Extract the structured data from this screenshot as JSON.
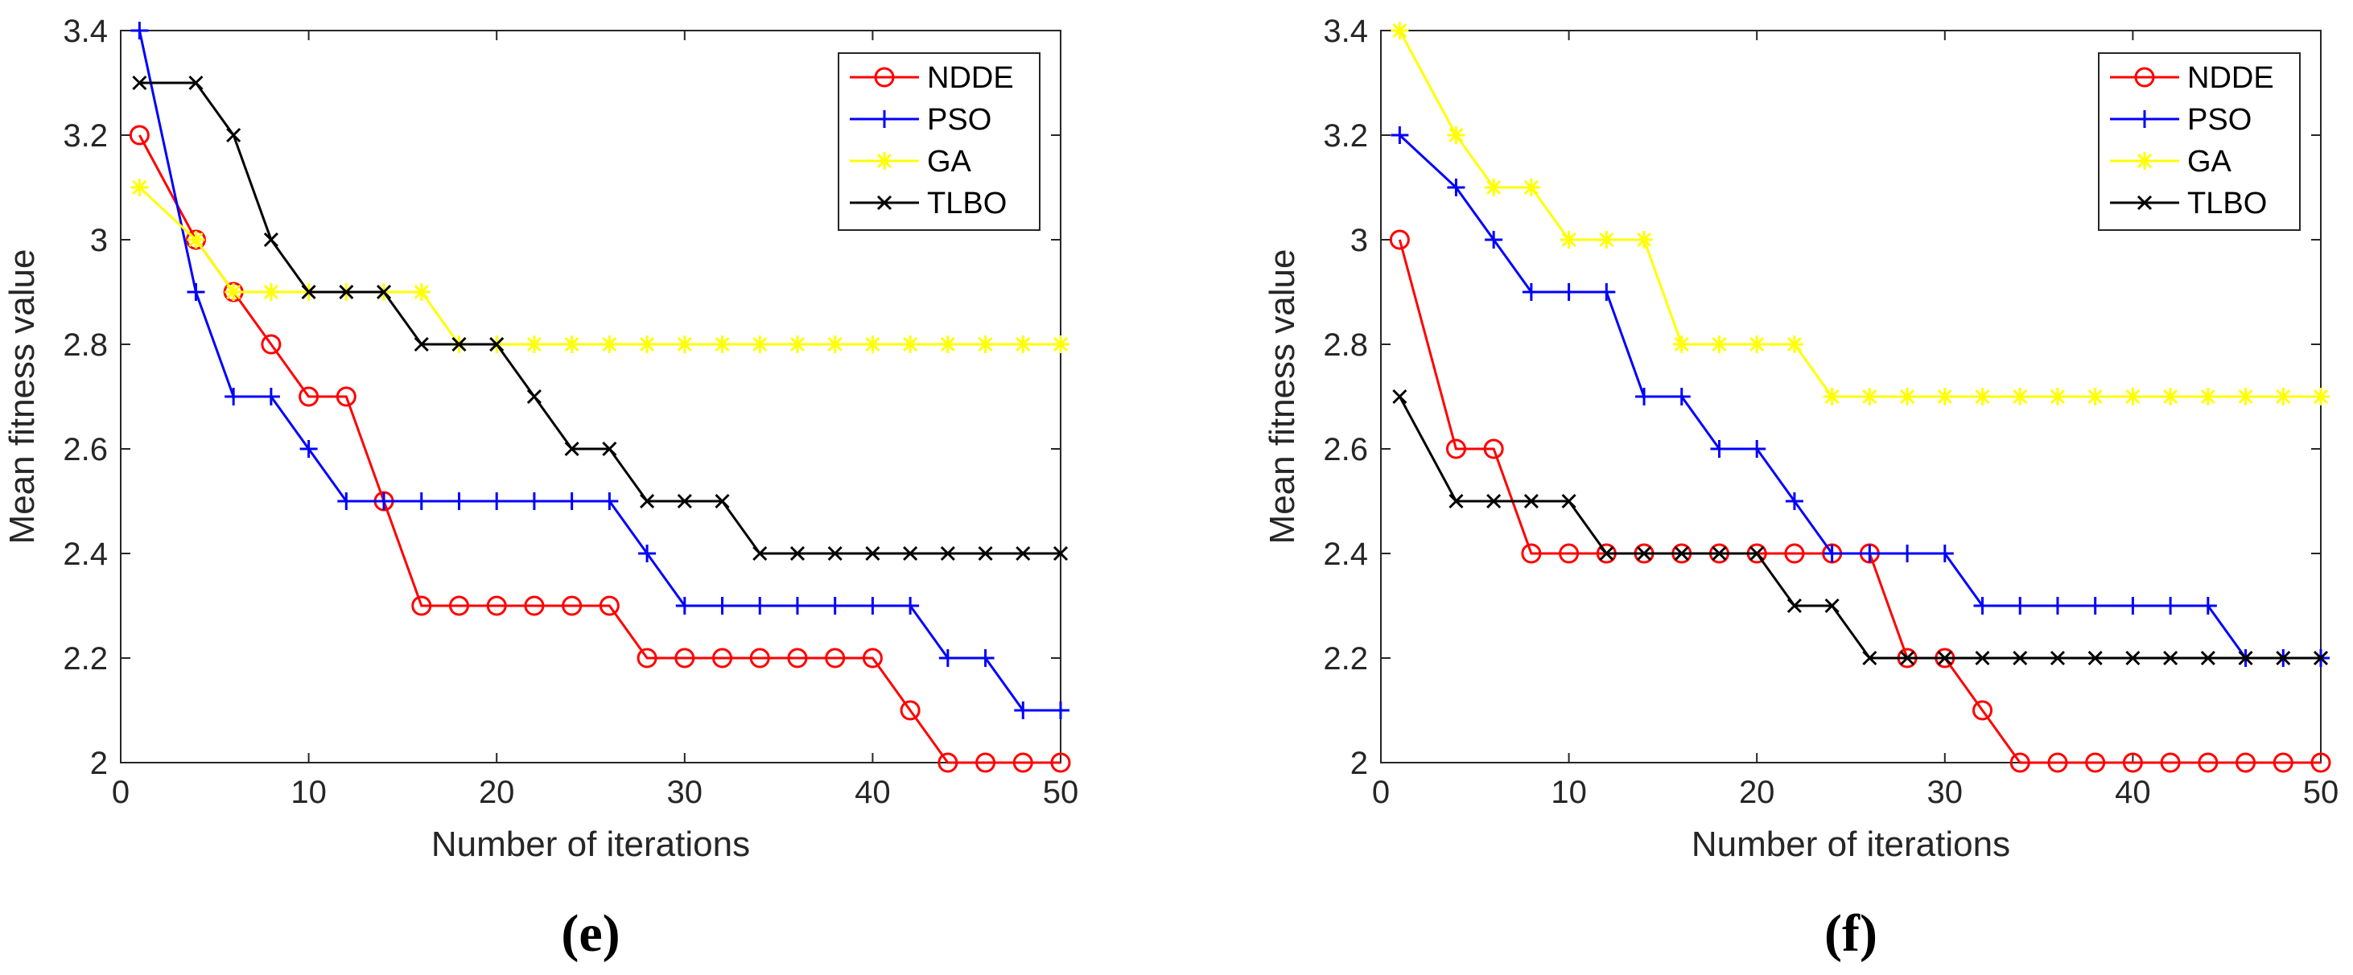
{
  "chart_data": [
    {
      "type": "line",
      "panel_label": "(e)",
      "xlabel": "Number of iterations",
      "ylabel": "Mean fitness value",
      "xlim": [
        0,
        50
      ],
      "ylim": [
        2,
        3.4
      ],
      "xticks": [
        0,
        10,
        20,
        30,
        40,
        50
      ],
      "yticks": [
        2,
        2.2,
        2.4,
        2.6,
        2.8,
        3,
        3.2,
        3.4
      ],
      "ytick_labels": [
        "2",
        "2.2",
        "2.4",
        "2.6",
        "2.8",
        "3",
        "3.2",
        "3.4"
      ],
      "grid": false,
      "legend_position": "top-right",
      "x": [
        1,
        4,
        6,
        8,
        10,
        12,
        14,
        16,
        18,
        20,
        22,
        24,
        26,
        28,
        30,
        32,
        34,
        36,
        38,
        40,
        42,
        44,
        46,
        48,
        50
      ],
      "series": [
        {
          "name": "NDDE",
          "color": "#ff0000",
          "marker": "circle",
          "values": [
            3.2,
            3.0,
            2.9,
            2.8,
            2.7,
            2.7,
            2.5,
            2.3,
            2.3,
            2.3,
            2.3,
            2.3,
            2.3,
            2.2,
            2.2,
            2.2,
            2.2,
            2.2,
            2.2,
            2.2,
            2.1,
            2.0,
            2.0,
            2.0,
            2.0
          ]
        },
        {
          "name": "PSO",
          "color": "#0000ff",
          "marker": "plus",
          "values": [
            3.4,
            2.9,
            2.7,
            2.7,
            2.6,
            2.5,
            2.5,
            2.5,
            2.5,
            2.5,
            2.5,
            2.5,
            2.5,
            2.4,
            2.3,
            2.3,
            2.3,
            2.3,
            2.3,
            2.3,
            2.3,
            2.2,
            2.2,
            2.1,
            2.1
          ]
        },
        {
          "name": "GA",
          "color": "#ffff00",
          "marker": "asterisk",
          "values": [
            3.1,
            3.0,
            2.9,
            2.9,
            2.9,
            2.9,
            2.9,
            2.9,
            2.8,
            2.8,
            2.8,
            2.8,
            2.8,
            2.8,
            2.8,
            2.8,
            2.8,
            2.8,
            2.8,
            2.8,
            2.8,
            2.8,
            2.8,
            2.8,
            2.8
          ]
        },
        {
          "name": "TLBO",
          "color": "#000000",
          "marker": "x",
          "values": [
            3.3,
            3.3,
            3.2,
            3.0,
            2.9,
            2.9,
            2.9,
            2.8,
            2.8,
            2.8,
            2.7,
            2.6,
            2.6,
            2.5,
            2.5,
            2.5,
            2.4,
            2.4,
            2.4,
            2.4,
            2.4,
            2.4,
            2.4,
            2.4,
            2.4
          ]
        }
      ]
    },
    {
      "type": "line",
      "panel_label": "(f)",
      "xlabel": "Number of iterations",
      "ylabel": "Mean fitness value",
      "xlim": [
        0,
        50
      ],
      "ylim": [
        2,
        3.4
      ],
      "xticks": [
        0,
        10,
        20,
        30,
        40,
        50
      ],
      "yticks": [
        2,
        2.2,
        2.4,
        2.6,
        2.8,
        3,
        3.2,
        3.4
      ],
      "ytick_labels": [
        "2",
        "2.2",
        "2.4",
        "2.6",
        "2.8",
        "3",
        "3.2",
        "3.4"
      ],
      "grid": false,
      "legend_position": "top-right",
      "x": [
        1,
        4,
        6,
        8,
        10,
        12,
        14,
        16,
        18,
        20,
        22,
        24,
        26,
        28,
        30,
        32,
        34,
        36,
        38,
        40,
        42,
        44,
        46,
        48,
        50
      ],
      "series": [
        {
          "name": "NDDE",
          "color": "#ff0000",
          "marker": "circle",
          "values": [
            3.0,
            2.6,
            2.6,
            2.4,
            2.4,
            2.4,
            2.4,
            2.4,
            2.4,
            2.4,
            2.4,
            2.4,
            2.4,
            2.2,
            2.2,
            2.1,
            2.0,
            2.0,
            2.0,
            2.0,
            2.0,
            2.0,
            2.0,
            2.0,
            2.0
          ]
        },
        {
          "name": "PSO",
          "color": "#0000ff",
          "marker": "plus",
          "values": [
            3.2,
            3.1,
            3.0,
            2.9,
            2.9,
            2.9,
            2.7,
            2.7,
            2.6,
            2.6,
            2.5,
            2.4,
            2.4,
            2.4,
            2.4,
            2.3,
            2.3,
            2.3,
            2.3,
            2.3,
            2.3,
            2.3,
            2.2,
            2.2,
            2.2
          ]
        },
        {
          "name": "GA",
          "color": "#ffff00",
          "marker": "asterisk",
          "values": [
            3.4,
            3.2,
            3.1,
            3.1,
            3.0,
            3.0,
            3.0,
            2.8,
            2.8,
            2.8,
            2.8,
            2.7,
            2.7,
            2.7,
            2.7,
            2.7,
            2.7,
            2.7,
            2.7,
            2.7,
            2.7,
            2.7,
            2.7,
            2.7,
            2.7
          ]
        },
        {
          "name": "TLBO",
          "color": "#000000",
          "marker": "x",
          "values": [
            2.7,
            2.5,
            2.5,
            2.5,
            2.5,
            2.4,
            2.4,
            2.4,
            2.4,
            2.4,
            2.3,
            2.3,
            2.2,
            2.2,
            2.2,
            2.2,
            2.2,
            2.2,
            2.2,
            2.2,
            2.2,
            2.2,
            2.2,
            2.2,
            2.2
          ]
        }
      ]
    }
  ]
}
